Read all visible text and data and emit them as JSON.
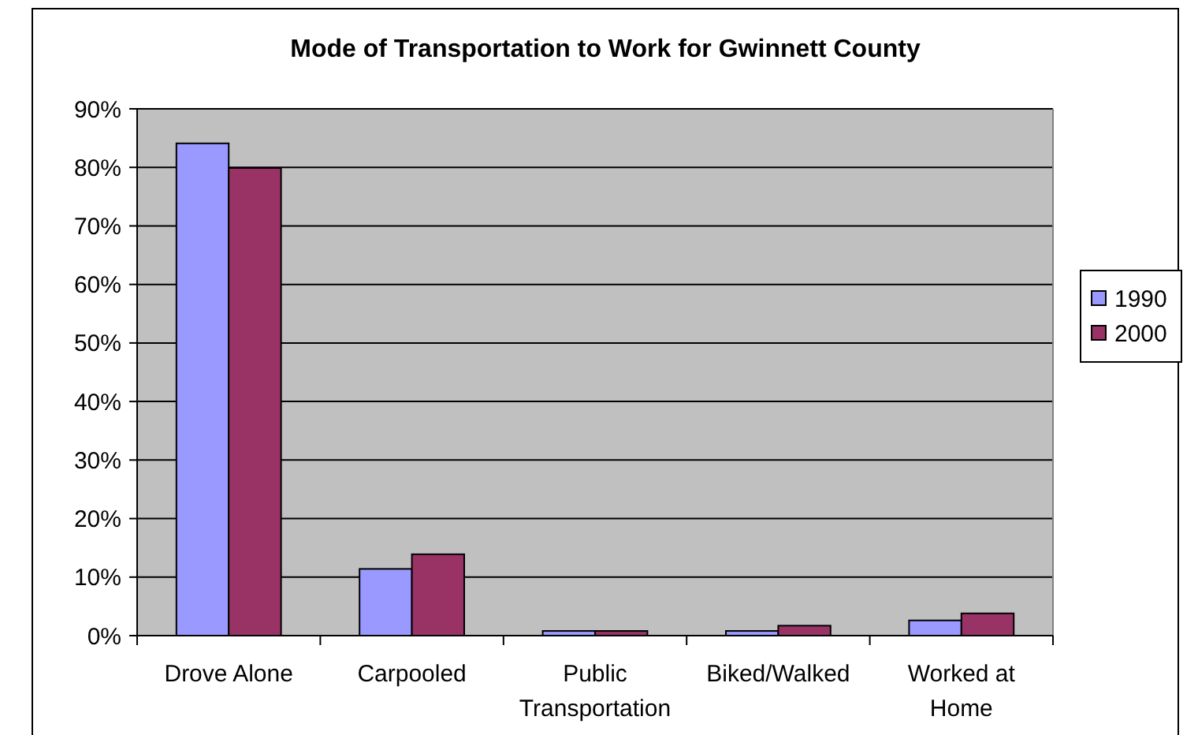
{
  "chart_data": {
    "type": "bar",
    "title": "Mode of Transportation to Work for Gwinnett County",
    "categories": [
      "Drove Alone",
      "Carpooled",
      "Public Transportation",
      "Biked/Walked",
      "Worked at Home"
    ],
    "series": [
      {
        "name": "1990",
        "color": "#9999ff",
        "values": [
          84.1,
          11.4,
          0.8,
          0.8,
          2.6
        ]
      },
      {
        "name": "2000",
        "color": "#993366",
        "values": [
          79.9,
          13.9,
          0.8,
          1.7,
          3.8
        ]
      }
    ],
    "ylim": [
      0,
      90
    ],
    "yticks": [
      {
        "value": 0,
        "label": "0%"
      },
      {
        "value": 10,
        "label": "10%"
      },
      {
        "value": 20,
        "label": "20%"
      },
      {
        "value": 30,
        "label": "30%"
      },
      {
        "value": 40,
        "label": "40%"
      },
      {
        "value": 50,
        "label": "50%"
      },
      {
        "value": 60,
        "label": "60%"
      },
      {
        "value": 70,
        "label": "70%"
      },
      {
        "value": 80,
        "label": "80%"
      },
      {
        "value": 90,
        "label": "90%"
      }
    ],
    "grid": "y",
    "legend": "right"
  }
}
